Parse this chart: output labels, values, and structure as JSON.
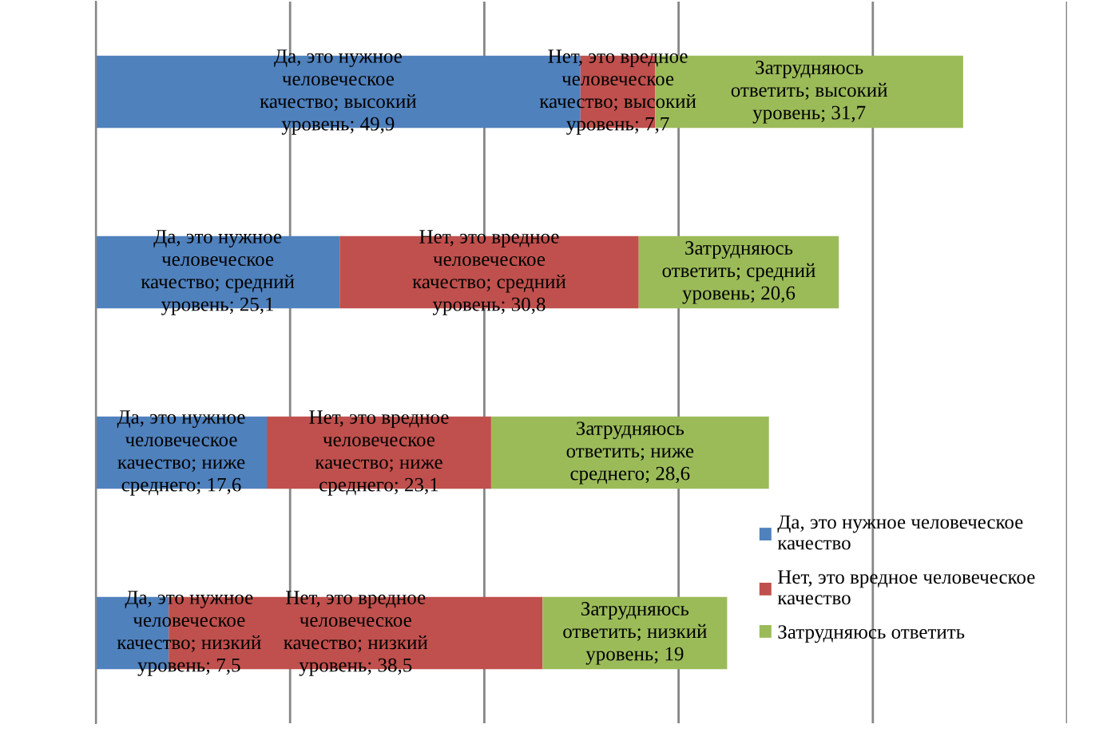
{
  "chart_data": {
    "type": "bar",
    "orientation": "horizontal",
    "stacked": true,
    "categories": [
      null,
      null,
      null,
      null
    ],
    "series": [
      {
        "name": "Да, это нужное человеческое\nкачество",
        "color": "#4f81bd",
        "values": [
          49.9,
          25.1,
          17.6,
          7.5
        ],
        "value_labels": [
          "Да, это нужное\nчеловеческое\nкачество; высокий\nуровень; 49,9",
          "Да, это нужное\nчеловеческое\nкачество; средний\nуровень; 25,1",
          "Да, это нужное\nчеловеческое\nкачество; ниже\nсреднего; 17,6",
          "Да, это нужное\nчеловеческое\nкачество; низкий\nуровень; 7,5"
        ]
      },
      {
        "name": "Нет, это вредное человеческое\nкачество",
        "color": "#c0504d",
        "values": [
          7.7,
          30.8,
          23.1,
          38.5
        ],
        "value_labels": [
          "Нет, это вредное\nчеловеческое\nкачество; высокий\nуровень; 7,7",
          "Нет, это вредное\nчеловеческое\nкачество; средний\nуровень; 30,8",
          "Нет, это вредное\nчеловеческое\nкачество; ниже\nсреднего; 23,1",
          "Нет, это вредное\nчеловеческое\nкачество; низкий\nуровень; 38,5"
        ]
      },
      {
        "name": "Затрудняюсь ответить",
        "color": "#9bbb59",
        "values": [
          31.7,
          20.6,
          28.6,
          19
        ],
        "value_labels": [
          "Затрудняюсь\nответить; высокий\nуровень; 31,7",
          "Затрудняюсь\nответить; средний\nуровень; 20,6",
          "Затрудняюсь\nответить; ниже\nсреднего; 28,6",
          "Затрудняюсь\nответить; низкий\nуровень; 19"
        ]
      }
    ],
    "xlim": [
      0,
      100
    ],
    "xticks": [
      {
        "value": 0,
        "label": null
      },
      {
        "value": 20,
        "label": null
      },
      {
        "value": 40,
        "label": null
      },
      {
        "value": 60,
        "label": null
      },
      {
        "value": 80,
        "label": null
      },
      {
        "value": 100,
        "label": null
      }
    ],
    "grid": "x",
    "legend": "right"
  }
}
